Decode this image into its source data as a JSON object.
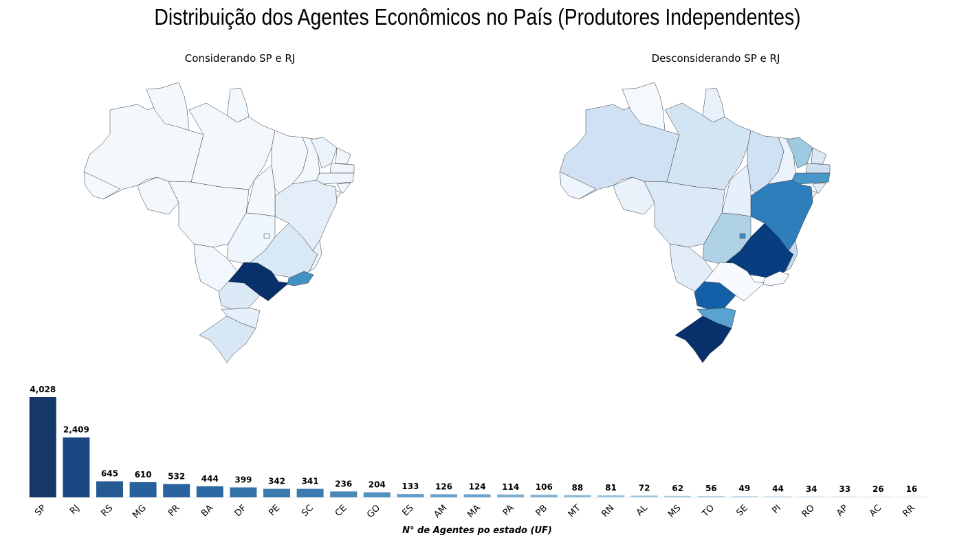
{
  "title": "Distribuição dos Agentes Econômicos no País (Produtores Independentes)",
  "maps": {
    "left_title": "Considerando SP e RJ",
    "right_title": "Desconsiderando SP e RJ",
    "colormap": "Blues"
  },
  "chart_data": {
    "type": "bar",
    "xlabel": "N° de Agentes po estado (UF)",
    "ylabel": "",
    "categories": [
      "SP",
      "RJ",
      "RS",
      "MG",
      "PR",
      "BA",
      "DF",
      "PE",
      "SC",
      "CE",
      "GO",
      "ES",
      "AM",
      "MA",
      "PA",
      "PB",
      "MT",
      "RN",
      "AL",
      "MS",
      "TO",
      "SE",
      "PI",
      "RO",
      "AP",
      "AC",
      "RR"
    ],
    "values": [
      4028,
      2409,
      645,
      610,
      532,
      444,
      399,
      342,
      341,
      236,
      204,
      133,
      126,
      124,
      114,
      106,
      88,
      81,
      72,
      62,
      56,
      49,
      44,
      34,
      33,
      26,
      16
    ],
    "value_labels": [
      "4,028",
      "2,409",
      "645",
      "610",
      "532",
      "444",
      "399",
      "342",
      "341",
      "236",
      "204",
      "133",
      "126",
      "124",
      "114",
      "106",
      "88",
      "81",
      "72",
      "62",
      "56",
      "49",
      "44",
      "34",
      "33",
      "26",
      "16"
    ],
    "colors": [
      "#163869",
      "#1b4882",
      "#255a93",
      "#28609b",
      "#2a62a0",
      "#2c68a4",
      "#3371a8",
      "#3b79af",
      "#3d7ab1",
      "#4a88b8",
      "#5290be",
      "#5e9bc6",
      "#6aa2cb",
      "#6ba3cc",
      "#78add3",
      "#80b2d7",
      "#8bbad9",
      "#96c2dc",
      "#a0c7dd",
      "#a9cde1",
      "#b2d3e6",
      "#bdd8e8",
      "#c5ddec",
      "#cbe0f0",
      "#d2e4f1",
      "#d9e8f3",
      "#e1ecf7"
    ],
    "ylim": [
      0,
      4200
    ],
    "grid": false
  }
}
